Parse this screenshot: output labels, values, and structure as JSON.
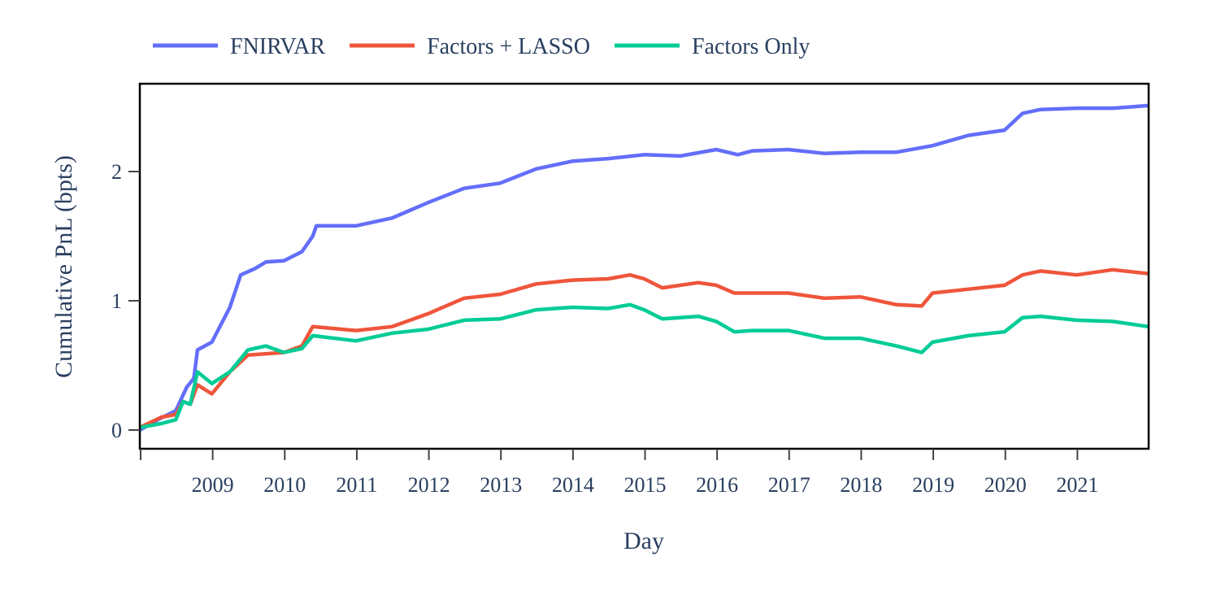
{
  "chart_data": {
    "type": "line",
    "title": "",
    "xlabel": "Day",
    "ylabel": "Cumulative PnL (bpts)",
    "xlim": [
      2008.0,
      2022.0
    ],
    "ylim": [
      -0.15,
      2.68
    ],
    "x_ticks": [
      2008,
      2009,
      2010,
      2011,
      2012,
      2013,
      2014,
      2015,
      2016,
      2017,
      2018,
      2019,
      2020,
      2021
    ],
    "x_tick_labels": [
      "",
      "2009",
      "2010",
      "2011",
      "2012",
      "2013",
      "2014",
      "2015",
      "2016",
      "2017",
      "2018",
      "2019",
      "2020",
      "2021"
    ],
    "y_ticks": [
      0,
      1,
      2
    ],
    "y_tick_labels": [
      "0",
      "1",
      "2"
    ],
    "grid": false,
    "legend_placement": "top-left, horizontal, above plot",
    "series": [
      {
        "name": "FNIRVAR",
        "color": "#636efa",
        "x": [
          2008.0,
          2008.25,
          2008.5,
          2008.65,
          2008.75,
          2008.8,
          2009.0,
          2009.25,
          2009.4,
          2009.6,
          2009.75,
          2010.0,
          2010.25,
          2010.4,
          2010.45,
          2011.0,
          2011.5,
          2012.0,
          2012.5,
          2013.0,
          2013.5,
          2014.0,
          2014.5,
          2015.0,
          2015.5,
          2016.0,
          2016.3,
          2016.5,
          2017.0,
          2017.5,
          2018.0,
          2018.5,
          2019.0,
          2019.5,
          2020.0,
          2020.25,
          2020.5,
          2021.0,
          2021.5,
          2022.0
        ],
        "y": [
          0.0,
          0.08,
          0.15,
          0.33,
          0.4,
          0.62,
          0.68,
          0.95,
          1.2,
          1.25,
          1.3,
          1.31,
          1.38,
          1.5,
          1.58,
          1.58,
          1.64,
          1.76,
          1.87,
          1.91,
          2.02,
          2.08,
          2.1,
          2.13,
          2.12,
          2.17,
          2.13,
          2.16,
          2.17,
          2.14,
          2.15,
          2.15,
          2.2,
          2.28,
          2.32,
          2.45,
          2.48,
          2.49,
          2.49,
          2.51
        ]
      },
      {
        "name": "Factors + LASSO",
        "color": "#ef553b",
        "x": [
          2008.0,
          2008.3,
          2008.5,
          2008.6,
          2008.7,
          2008.8,
          2009.0,
          2009.25,
          2009.5,
          2010.0,
          2010.25,
          2010.4,
          2011.0,
          2011.5,
          2012.0,
          2012.5,
          2013.0,
          2013.5,
          2014.0,
          2014.5,
          2014.8,
          2015.0,
          2015.25,
          2015.75,
          2016.0,
          2016.25,
          2016.5,
          2017.0,
          2017.5,
          2018.0,
          2018.5,
          2018.85,
          2019.0,
          2019.5,
          2020.0,
          2020.25,
          2020.5,
          2021.0,
          2021.5,
          2022.0
        ],
        "y": [
          0.02,
          0.1,
          0.12,
          0.22,
          0.2,
          0.35,
          0.28,
          0.45,
          0.58,
          0.6,
          0.65,
          0.8,
          0.77,
          0.8,
          0.9,
          1.02,
          1.05,
          1.13,
          1.16,
          1.17,
          1.2,
          1.17,
          1.1,
          1.14,
          1.12,
          1.06,
          1.06,
          1.06,
          1.02,
          1.03,
          0.97,
          0.96,
          1.06,
          1.09,
          1.12,
          1.2,
          1.23,
          1.2,
          1.24,
          1.21
        ]
      },
      {
        "name": "Factors Only",
        "color": "#00cc96",
        "x": [
          2008.0,
          2008.3,
          2008.5,
          2008.6,
          2008.7,
          2008.8,
          2009.0,
          2009.25,
          2009.5,
          2009.75,
          2010.0,
          2010.25,
          2010.4,
          2011.0,
          2011.5,
          2012.0,
          2012.5,
          2013.0,
          2013.5,
          2014.0,
          2014.5,
          2014.8,
          2015.0,
          2015.25,
          2015.75,
          2016.0,
          2016.25,
          2016.5,
          2017.0,
          2017.5,
          2018.0,
          2018.5,
          2018.85,
          2019.0,
          2019.5,
          2020.0,
          2020.25,
          2020.5,
          2021.0,
          2021.5,
          2022.0
        ],
        "y": [
          0.02,
          0.05,
          0.08,
          0.22,
          0.2,
          0.45,
          0.36,
          0.45,
          0.62,
          0.65,
          0.6,
          0.63,
          0.73,
          0.69,
          0.75,
          0.78,
          0.85,
          0.86,
          0.93,
          0.95,
          0.94,
          0.97,
          0.93,
          0.86,
          0.88,
          0.84,
          0.76,
          0.77,
          0.77,
          0.71,
          0.71,
          0.65,
          0.6,
          0.68,
          0.73,
          0.76,
          0.87,
          0.88,
          0.85,
          0.84,
          0.8
        ]
      }
    ]
  }
}
